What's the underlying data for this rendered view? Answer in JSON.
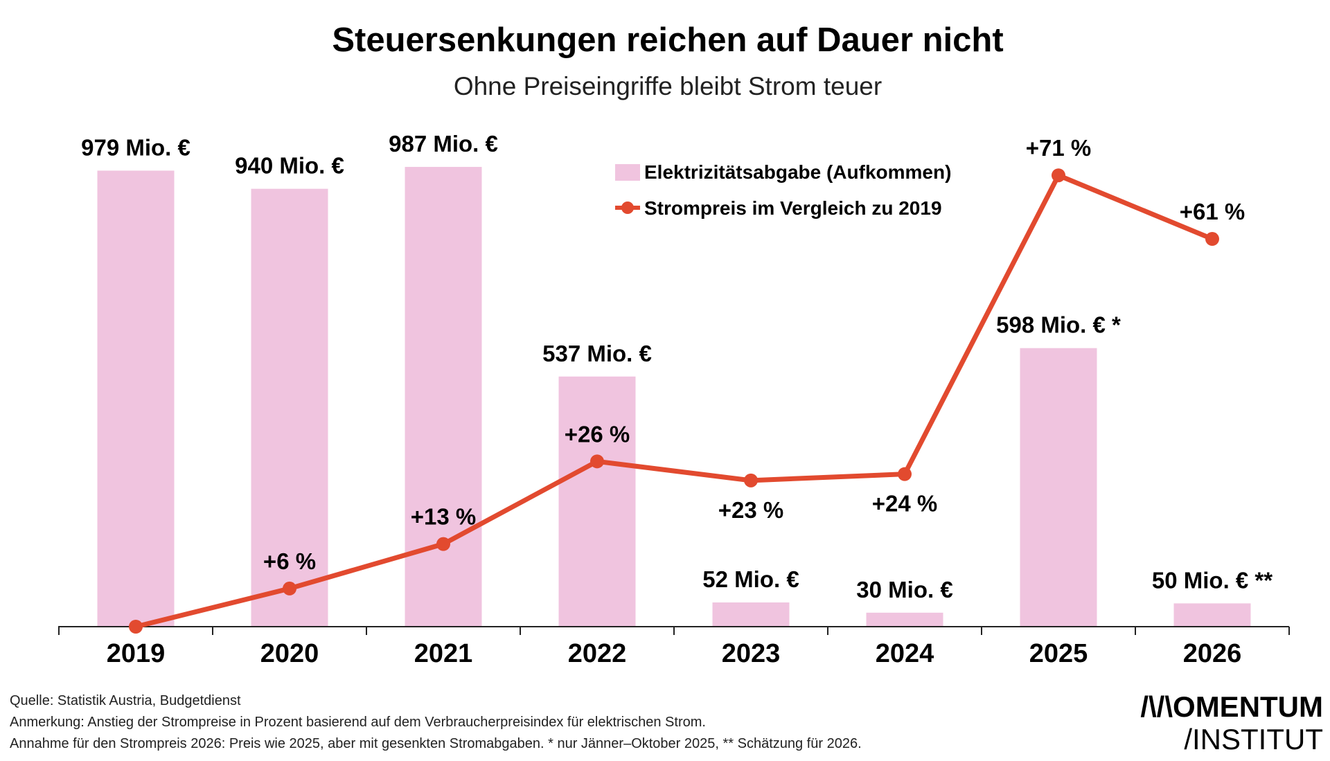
{
  "chart_data": {
    "type": "bar+line",
    "title": "Steuersenkungen reichen auf Dauer nicht",
    "subtitle": "Ohne Preiseingriffe bleibt Strom teuer",
    "categories": [
      "2019",
      "2020",
      "2021",
      "2022",
      "2023",
      "2024",
      "2025",
      "2026"
    ],
    "series": [
      {
        "name": "Elektrizitätsabgabe (Aufkommen)",
        "type": "bar",
        "unit": "Mio. €",
        "color": "#f0c4df",
        "values": [
          979,
          940,
          987,
          537,
          52,
          30,
          598,
          50
        ],
        "labels": [
          "979 Mio. €",
          "940 Mio. €",
          "987 Mio. €",
          "537 Mio. €",
          "52 Mio. €",
          "30 Mio. €",
          "598 Mio. € *",
          "50 Mio. € **"
        ]
      },
      {
        "name": "Strompreis im Vergleich zu 2019",
        "type": "line",
        "unit": "%",
        "color": "#e24a2f",
        "values": [
          0,
          6,
          13,
          26,
          23,
          24,
          71,
          61
        ],
        "labels": [
          "",
          "+6 %",
          "+13 %",
          "+26 %",
          "+23 %",
          "+24 %",
          "+71 %",
          "+61 %"
        ]
      }
    ],
    "grid": false,
    "legend_position": "top-center"
  },
  "footer": {
    "source": "Quelle: Statistik Austria, Budgetdienst",
    "note": "Anmerkung: Anstieg der Strompreise in Prozent basierend auf dem Verbraucherpreisindex für elektrischen Strom.",
    "assumption": "Annahme für den Strompreis 2026: Preis wie 2025, aber mit gesenkten Stromabgaben. * nur Jänner–Oktober 2025, ** Schätzung für 2026."
  },
  "logo": {
    "line1": "/\\/\\OMENTUM",
    "line2": "/INSTITUT"
  }
}
